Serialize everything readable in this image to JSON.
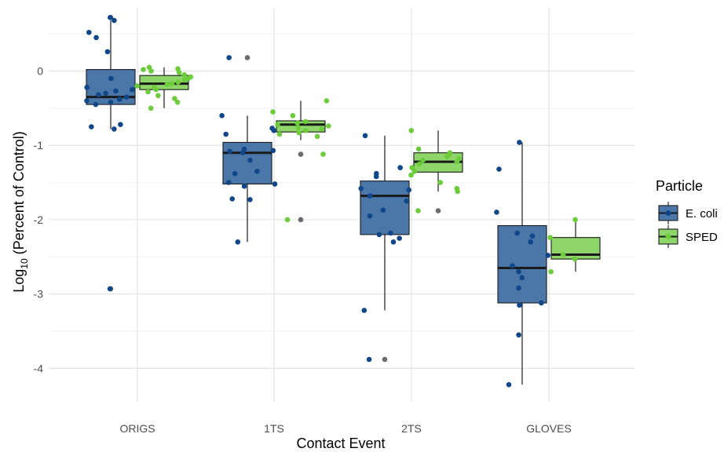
{
  "chart_data": {
    "type": "boxplot",
    "title": "",
    "xlabel": "Contact Event",
    "ylabel_main": "Log",
    "ylabel_sub": "10",
    "ylabel_rest": " (Percent of Control)",
    "categories": [
      "ORIGS",
      "1TS",
      "2TS",
      "GLOVES"
    ],
    "ylim": [
      -4.45,
      0.85
    ],
    "yticks": [
      0,
      -1,
      -2,
      -3,
      -4
    ],
    "grid": true,
    "legend": {
      "title": "Particle",
      "placement": "right",
      "entries": [
        {
          "label": "E. coli",
          "fill": "#4a76a8",
          "point": "#10468a"
        },
        {
          "label": "SPED",
          "fill": "#8fd66a",
          "point": "#6ccc3a"
        }
      ]
    },
    "outlier_color": "#6b6b6b",
    "series": [
      {
        "name": "E. coli",
        "boxes": [
          {
            "category": "ORIGS",
            "q1": -0.45,
            "median": -0.35,
            "q3": 0.02,
            "whisker_low": -0.78,
            "whisker_high": 0.68,
            "outliers": [
              0.72,
              -2.93
            ],
            "points": [
              0.72,
              0.68,
              0.52,
              0.45,
              0.26,
              -0.1,
              -0.22,
              -0.25,
              -0.27,
              -0.3,
              -0.32,
              -0.35,
              -0.38,
              -0.4,
              -0.42,
              -0.45,
              -0.72,
              -0.75,
              -0.78,
              -2.93
            ]
          },
          {
            "category": "1TS",
            "q1": -1.52,
            "median": -1.1,
            "q3": -0.96,
            "whisker_low": -2.3,
            "whisker_high": -0.6,
            "outliers": [
              0.18
            ],
            "points": [
              0.18,
              -0.6,
              -0.77,
              -0.8,
              -0.85,
              -1.05,
              -1.07,
              -1.08,
              -1.1,
              -1.2,
              -1.35,
              -1.38,
              -1.5,
              -1.52,
              -1.55,
              -1.72,
              -1.73,
              -2.3
            ]
          },
          {
            "category": "2TS",
            "q1": -2.2,
            "median": -1.68,
            "q3": -1.48,
            "whisker_low": -3.22,
            "whisker_high": -0.87,
            "outliers": [
              -3.88
            ],
            "points": [
              -0.87,
              -1.3,
              -1.38,
              -1.42,
              -1.58,
              -1.6,
              -1.68,
              -1.75,
              -1.87,
              -1.95,
              -2.18,
              -2.2,
              -2.25,
              -2.3,
              -3.22,
              -3.88
            ]
          },
          {
            "category": "GLOVES",
            "q1": -3.12,
            "median": -2.65,
            "q3": -2.08,
            "whisker_low": -4.22,
            "whisker_high": -0.96,
            "outliers": [],
            "points": [
              -0.96,
              -1.32,
              -1.9,
              -2.18,
              -2.22,
              -2.3,
              -2.48,
              -2.62,
              -2.7,
              -2.78,
              -2.92,
              -3.12,
              -3.15,
              -3.55,
              -4.22
            ]
          }
        ]
      },
      {
        "name": "SPED",
        "boxes": [
          {
            "category": "ORIGS",
            "q1": -0.25,
            "median": -0.17,
            "q3": -0.06,
            "whisker_low": -0.5,
            "whisker_high": 0.05,
            "outliers": [],
            "points": [
              0.05,
              0.03,
              0.02,
              0.0,
              -0.02,
              -0.05,
              -0.08,
              -0.1,
              -0.12,
              -0.15,
              -0.17,
              -0.18,
              -0.2,
              -0.22,
              -0.25,
              -0.28,
              -0.33,
              -0.37,
              -0.42,
              -0.5
            ]
          },
          {
            "category": "1TS",
            "q1": -0.82,
            "median": -0.72,
            "q3": -0.67,
            "whisker_low": -0.93,
            "whisker_high": -0.4,
            "outliers": [
              -1.12,
              -2.0
            ],
            "points": [
              -0.4,
              -0.55,
              -0.6,
              -0.68,
              -0.7,
              -0.72,
              -0.74,
              -0.76,
              -0.78,
              -0.8,
              -0.83,
              -0.85,
              -0.88,
              -1.12,
              -2.0
            ]
          },
          {
            "category": "2TS",
            "q1": -1.36,
            "median": -1.22,
            "q3": -1.1,
            "whisker_low": -1.62,
            "whisker_high": -0.8,
            "outliers": [
              -1.88
            ],
            "points": [
              -0.8,
              -1.05,
              -1.1,
              -1.12,
              -1.15,
              -1.18,
              -1.2,
              -1.22,
              -1.25,
              -1.3,
              -1.35,
              -1.4,
              -1.5,
              -1.58,
              -1.62,
              -1.88
            ]
          },
          {
            "category": "GLOVES",
            "q1": -2.53,
            "median": -2.47,
            "q3": -2.24,
            "whisker_low": -2.7,
            "whisker_high": -2.0,
            "outliers": [],
            "points": [
              -2.0,
              -2.24,
              -2.47,
              -2.53,
              -2.7
            ]
          }
        ]
      }
    ]
  }
}
